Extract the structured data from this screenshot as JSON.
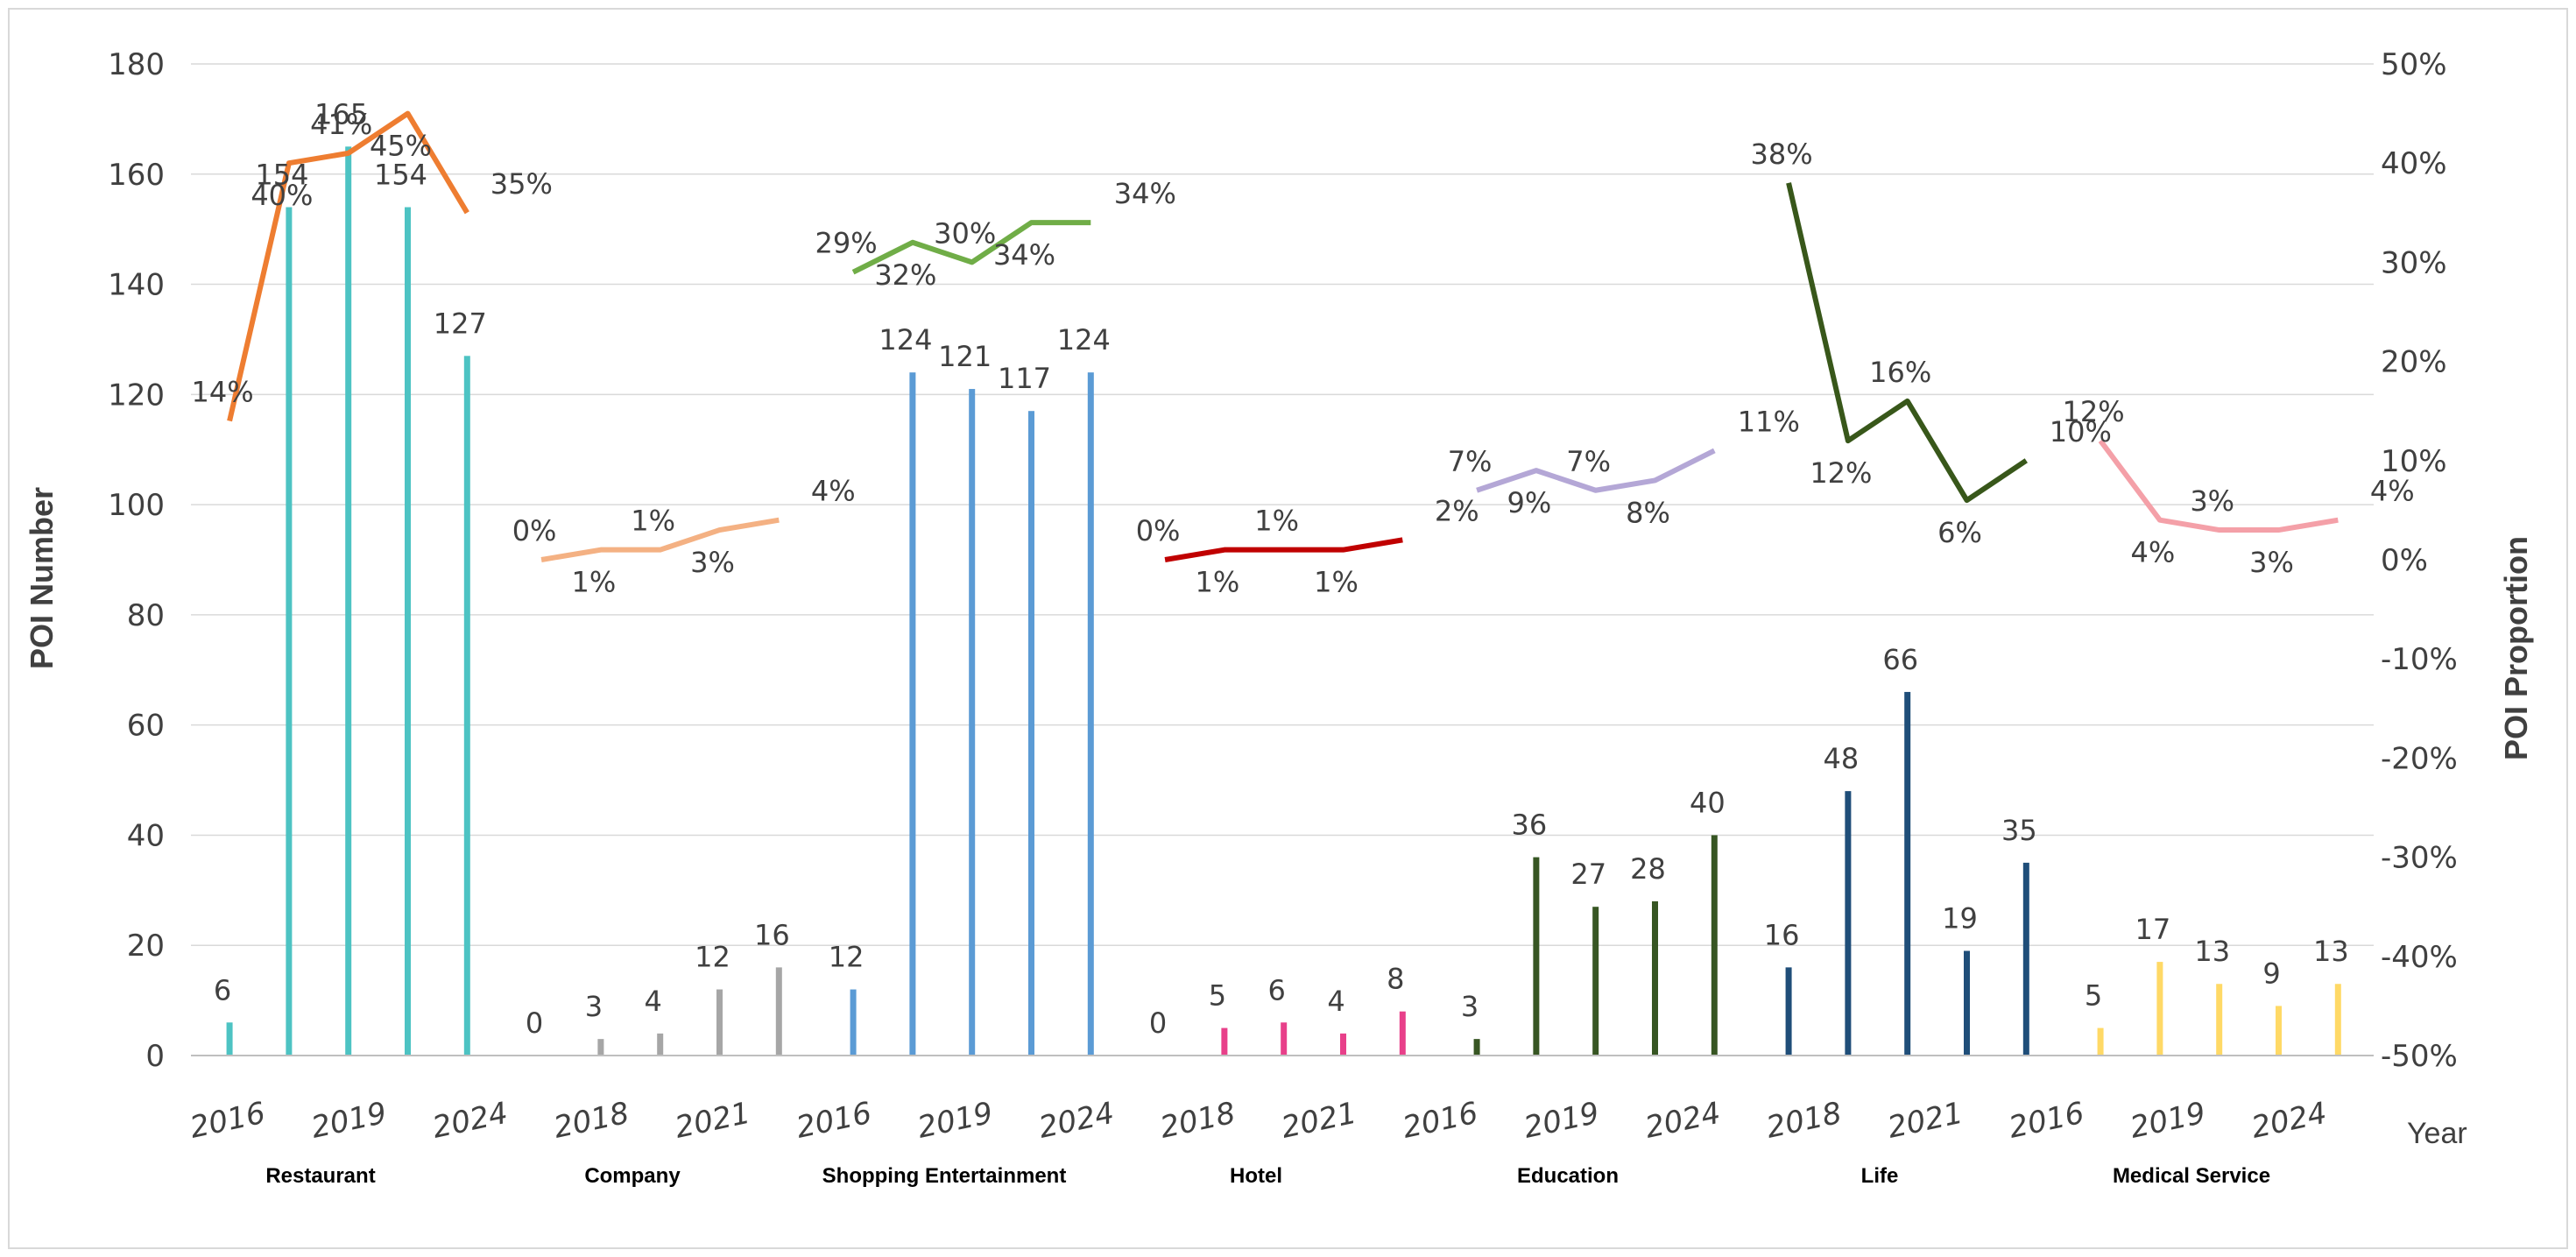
{
  "chart_data": {
    "type": "bar+line",
    "title": "",
    "ylabel": "POI  Number",
    "y2label": "POI Proportion",
    "xlabel": "Year",
    "ylim": [
      0,
      180
    ],
    "y2lim": [
      -50,
      50
    ],
    "yticks": [
      "0",
      "20",
      "40",
      "60",
      "80",
      "100",
      "120",
      "140",
      "160",
      "180"
    ],
    "y2ticks": [
      "-50%",
      "-40%",
      "-30%",
      "-20%",
      "-10%",
      "0%",
      "10%",
      "20%",
      "30%",
      "40%",
      "50%"
    ],
    "year_ticks": [
      "2016",
      "2019",
      "2024",
      "2018",
      "2021",
      "2016",
      "2019",
      "2024",
      "2018",
      "2021",
      "2016",
      "2019",
      "2024",
      "2018",
      "2021",
      "2016",
      "2019",
      "2024"
    ],
    "groups": [
      {
        "category": "Restaurant",
        "bar_color": "#4dc3c3",
        "line_color": "#ee7d31",
        "values": [
          6,
          154,
          165,
          154,
          127
        ],
        "value_labels": [
          "6",
          "154",
          "165",
          "154",
          "127"
        ],
        "proportions": [
          14,
          40,
          41,
          45,
          35
        ],
        "proportion_labels": [
          "14%",
          "40%",
          "41%",
          "45%",
          "35%"
        ]
      },
      {
        "category": "Company",
        "bar_color": "#a6a6a6",
        "line_color": "#f4b183",
        "values": [
          0,
          3,
          4,
          12,
          16
        ],
        "value_labels": [
          "0",
          "3",
          "4",
          "12",
          "16"
        ],
        "proportions": [
          0,
          1,
          1,
          3,
          4
        ],
        "proportion_labels": [
          "0%",
          "1%",
          "1%",
          "3%",
          "4%"
        ]
      },
      {
        "category": "Shopping  Entertainment",
        "bar_color": "#5b9bd5",
        "line_color": "#70ad47",
        "values": [
          12,
          124,
          121,
          117,
          124
        ],
        "value_labels": [
          "12",
          "124",
          "121",
          "117",
          "124"
        ],
        "proportions": [
          29,
          32,
          30,
          34,
          34
        ],
        "proportion_labels": [
          "29%",
          "32%",
          "30%",
          "34%",
          "34%"
        ]
      },
      {
        "category": "Hotel",
        "bar_color": "#e8408a",
        "line_color": "#c00000",
        "values": [
          0,
          5,
          6,
          4,
          8
        ],
        "value_labels": [
          "0",
          "5",
          "6",
          "4",
          "8"
        ],
        "proportions": [
          0,
          1,
          1,
          1,
          2
        ],
        "proportion_labels": [
          "0%",
          "1%",
          "1%",
          "1%",
          "2%"
        ]
      },
      {
        "category": "Education",
        "bar_color": "#375623",
        "line_color": "#b4a7d6",
        "values": [
          3,
          36,
          27,
          28,
          40
        ],
        "value_labels": [
          "3",
          "36",
          "27",
          "28",
          "40"
        ],
        "proportions": [
          7,
          9,
          7,
          8,
          11
        ],
        "proportion_labels": [
          "7%",
          "9%",
          "7%",
          "8%",
          "11%"
        ]
      },
      {
        "category": "Life",
        "bar_color": "#1f4e79",
        "line_color": "#38571a",
        "values": [
          16,
          48,
          66,
          19,
          35
        ],
        "value_labels": [
          "16",
          "48",
          "66",
          "19",
          "35"
        ],
        "proportions": [
          38,
          12,
          16,
          6,
          10
        ],
        "proportion_labels": [
          "38%",
          "12%",
          "16%",
          "6%",
          "10%"
        ]
      },
      {
        "category": "Medical Service",
        "bar_color": "#ffd966",
        "line_color": "#f4a0a8",
        "values": [
          5,
          17,
          13,
          9,
          13
        ],
        "value_labels": [
          "5",
          "17",
          "13",
          "9",
          "13"
        ],
        "proportions": [
          12,
          4,
          3,
          3,
          4
        ],
        "proportion_labels": [
          "12%",
          "4%",
          "3%",
          "3%",
          "4%"
        ]
      }
    ]
  }
}
